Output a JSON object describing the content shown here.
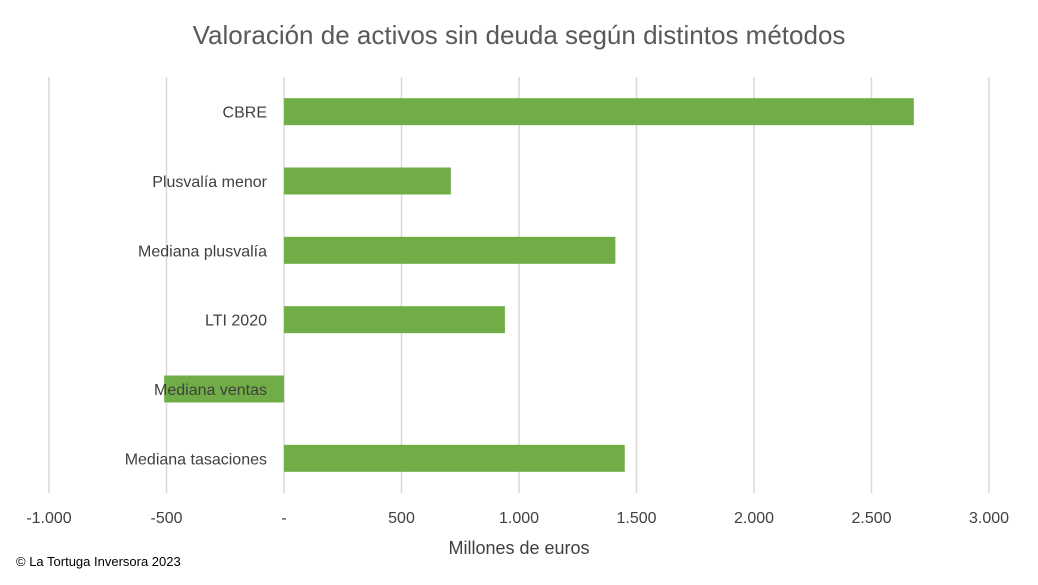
{
  "chart_data": {
    "type": "bar",
    "orientation": "horizontal",
    "title": "Valoración de activos sin deuda según distintos métodos",
    "xlabel": "Millones de euros",
    "ylabel": "",
    "categories": [
      "CBRE",
      "Plusvalía menor",
      "Mediana plusvalía",
      "LTI 2020",
      "Mediana ventas",
      "Mediana tasaciones"
    ],
    "values": [
      2680,
      710,
      1410,
      940,
      -510,
      1450
    ],
    "xlim": [
      -1000,
      3000
    ],
    "tick_values": [
      -1000,
      -500,
      0,
      500,
      1000,
      1500,
      2000,
      2500,
      3000
    ],
    "tick_labels": [
      "-1.000",
      "-500",
      "-",
      "500",
      "1.000",
      "1.500",
      "2.000",
      "2.500",
      "3.000"
    ],
    "grid": "vertical",
    "bar_color": "#70AD47",
    "grid_color": "#D9D9D9",
    "legend": "none"
  },
  "footer": {
    "copyright": "© La Tortuga Inversora 2023"
  }
}
